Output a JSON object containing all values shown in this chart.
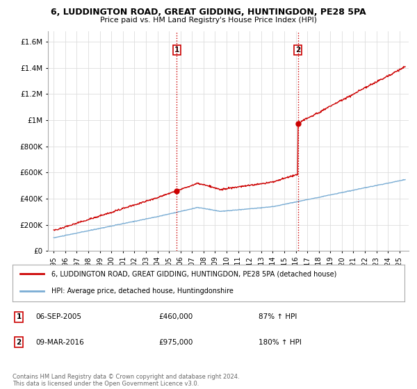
{
  "title": "6, LUDDINGTON ROAD, GREAT GIDDING, HUNTINGDON, PE28 5PA",
  "subtitle": "Price paid vs. HM Land Registry's House Price Index (HPI)",
  "ylabel_ticks": [
    "£0",
    "£200K",
    "£400K",
    "£600K",
    "£800K",
    "£1M",
    "£1.2M",
    "£1.4M",
    "£1.6M"
  ],
  "ytick_values": [
    0,
    200000,
    400000,
    600000,
    800000,
    1000000,
    1200000,
    1400000,
    1600000
  ],
  "ylim": [
    0,
    1680000
  ],
  "xlim_start": 1994.5,
  "xlim_end": 2025.8,
  "sale1_x": 2005.68,
  "sale1_y": 460000,
  "sale2_x": 2016.19,
  "sale2_y": 975000,
  "vline_color": "#cc0000",
  "hpi_line_color": "#7aadd4",
  "price_line_color": "#cc0000",
  "legend_line1": "6, LUDDINGTON ROAD, GREAT GIDDING, HUNTINGDON, PE28 5PA (detached house)",
  "legend_line2": "HPI: Average price, detached house, Huntingdonshire",
  "annotation1_date": "06-SEP-2005",
  "annotation1_price": "£460,000",
  "annotation1_hpi": "87% ↑ HPI",
  "annotation2_date": "09-MAR-2016",
  "annotation2_price": "£975,000",
  "annotation2_hpi": "180% ↑ HPI",
  "footer": "Contains HM Land Registry data © Crown copyright and database right 2024.\nThis data is licensed under the Open Government Licence v3.0.",
  "background_color": "#ffffff",
  "grid_color": "#dddddd"
}
